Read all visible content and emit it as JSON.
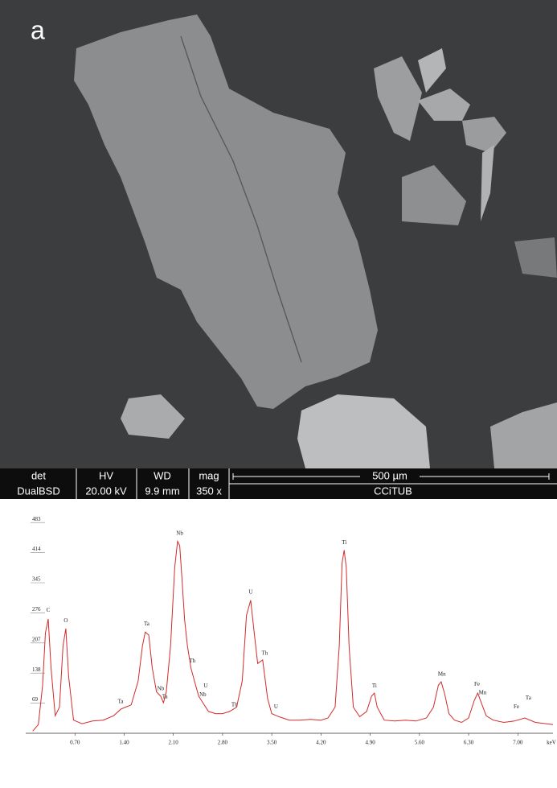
{
  "image": {
    "panel_label": "a",
    "info_bar": {
      "headers": [
        "det",
        "HV",
        "WD",
        "mag"
      ],
      "values": [
        "DualBSD",
        "20.00 kV",
        "9.9 mm",
        "350 x"
      ],
      "scale": "500 µm",
      "facility": "CCiTUB"
    }
  },
  "chart_data": {
    "type": "line",
    "color": "#d42a2a",
    "x": [
      0.1,
      0.18,
      0.24,
      0.28,
      0.32,
      0.36,
      0.42,
      0.48,
      0.53,
      0.57,
      0.61,
      0.68,
      0.8,
      0.95,
      1.1,
      1.25,
      1.35,
      1.42,
      1.5,
      1.6,
      1.66,
      1.7,
      1.75,
      1.8,
      1.86,
      1.92,
      1.96,
      2.0,
      2.06,
      2.12,
      2.16,
      2.19,
      2.22,
      2.26,
      2.3,
      2.35,
      2.4,
      2.46,
      2.52,
      2.6,
      2.7,
      2.8,
      2.9,
      3.0,
      3.08,
      3.14,
      3.2,
      3.25,
      3.3,
      3.37,
      3.44,
      3.5,
      3.6,
      3.75,
      3.9,
      4.05,
      4.2,
      4.3,
      4.4,
      4.46,
      4.5,
      4.53,
      4.56,
      4.6,
      4.66,
      4.75,
      4.85,
      4.92,
      4.96,
      5.0,
      5.1,
      5.25,
      5.4,
      5.55,
      5.7,
      5.8,
      5.87,
      5.91,
      5.96,
      6.02,
      6.1,
      6.2,
      6.3,
      6.38,
      6.43,
      6.48,
      6.55,
      6.65,
      6.8,
      6.95,
      7.1,
      7.25,
      7.4,
      7.5
    ],
    "values": [
      5,
      20,
      110,
      230,
      262,
      150,
      40,
      60,
      200,
      240,
      130,
      30,
      22,
      28,
      30,
      40,
      55,
      60,
      65,
      120,
      200,
      232,
      225,
      150,
      95,
      85,
      70,
      95,
      200,
      380,
      440,
      430,
      360,
      260,
      200,
      150,
      120,
      85,
      70,
      50,
      45,
      45,
      50,
      60,
      120,
      270,
      305,
      230,
      160,
      168,
      80,
      45,
      38,
      30,
      30,
      32,
      30,
      35,
      60,
      200,
      390,
      420,
      380,
      200,
      60,
      38,
      50,
      85,
      92,
      60,
      30,
      28,
      30,
      28,
      35,
      60,
      110,
      118,
      90,
      45,
      30,
      25,
      35,
      75,
      92,
      70,
      40,
      30,
      25,
      28,
      35,
      25,
      22,
      20
    ],
    "xlim": [
      0,
      7.5
    ],
    "ylim": [
      0,
      500
    ],
    "xticks": [
      {
        "value": 0.7,
        "label": "0.70"
      },
      {
        "value": 1.4,
        "label": "1.40"
      },
      {
        "value": 2.1,
        "label": "2.10"
      },
      {
        "value": 2.8,
        "label": "2.80"
      },
      {
        "value": 3.5,
        "label": "3.50"
      },
      {
        "value": 4.2,
        "label": "4.20"
      },
      {
        "value": 4.9,
        "label": "4.90"
      },
      {
        "value": 5.6,
        "label": "5.60"
      },
      {
        "value": 6.3,
        "label": "6.30"
      },
      {
        "value": 7.0,
        "label": "7.00"
      }
    ],
    "yticks": [
      69,
      138,
      207,
      276,
      345,
      414,
      483
    ],
    "x_label": "keV",
    "annotations": [
      {
        "text": "C",
        "x": 0.32,
        "y": 282
      },
      {
        "text": "O",
        "x": 0.57,
        "y": 258
      },
      {
        "text": "Ta",
        "x": 1.35,
        "y": 72
      },
      {
        "text": "Ta",
        "x": 1.72,
        "y": 250
      },
      {
        "text": "Nb",
        "x": 1.92,
        "y": 102
      },
      {
        "text": "Ta",
        "x": 1.98,
        "y": 83
      },
      {
        "text": "Nb",
        "x": 2.19,
        "y": 458
      },
      {
        "text": "Th",
        "x": 2.37,
        "y": 165
      },
      {
        "text": "U",
        "x": 2.56,
        "y": 108
      },
      {
        "text": "Nb",
        "x": 2.52,
        "y": 88
      },
      {
        "text": "Th",
        "x": 2.97,
        "y": 65
      },
      {
        "text": "U",
        "x": 3.2,
        "y": 323
      },
      {
        "text": "Th",
        "x": 3.4,
        "y": 183
      },
      {
        "text": "U",
        "x": 3.56,
        "y": 60
      },
      {
        "text": "Ti",
        "x": 4.53,
        "y": 437
      },
      {
        "text": "Ti",
        "x": 4.96,
        "y": 108
      },
      {
        "text": "Mn",
        "x": 5.92,
        "y": 135
      },
      {
        "text": "Fe",
        "x": 6.42,
        "y": 112
      },
      {
        "text": "Mn",
        "x": 6.5,
        "y": 92
      },
      {
        "text": "Ta",
        "x": 7.15,
        "y": 80
      },
      {
        "text": "Fe",
        "x": 6.98,
        "y": 60
      }
    ]
  }
}
